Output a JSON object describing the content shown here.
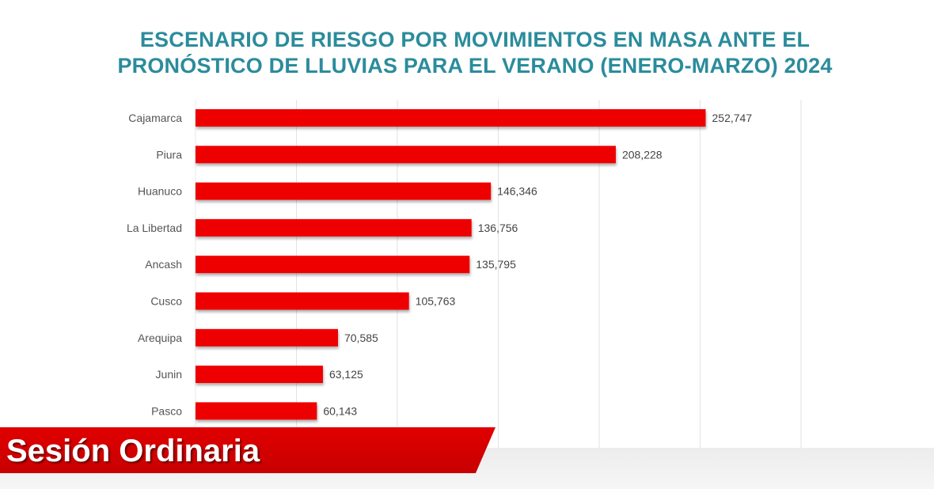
{
  "chart_data": {
    "type": "bar",
    "orientation": "horizontal",
    "title_lines": [
      "ESCENARIO DE RIESGO POR MOVIMIENTOS EN MASA ANTE EL",
      "PRONÓSTICO DE LLUVIAS PARA EL VERANO (ENERO-MARZO) 2024"
    ],
    "categories": [
      "Cajamarca",
      "Piura",
      "Huanuco",
      "La Libertad",
      "Ancash",
      "Cusco",
      "Arequipa",
      "Junin",
      "Pasco"
    ],
    "values": [
      252747,
      208228,
      146346,
      136756,
      135795,
      105763,
      70585,
      63125,
      60143
    ],
    "data_labels": [
      "252,747",
      "208,228",
      "146,346",
      "136,756",
      "135,795",
      "105,763",
      "70,585",
      "63,125",
      "60,143"
    ],
    "xlim": [
      0,
      300000
    ],
    "grid": true,
    "bar_color": "#ee0000",
    "title_color": "#2b8c9c"
  },
  "overlay": {
    "banner_text": "Sesión Ordinaria",
    "banner_color": "#d40000"
  }
}
